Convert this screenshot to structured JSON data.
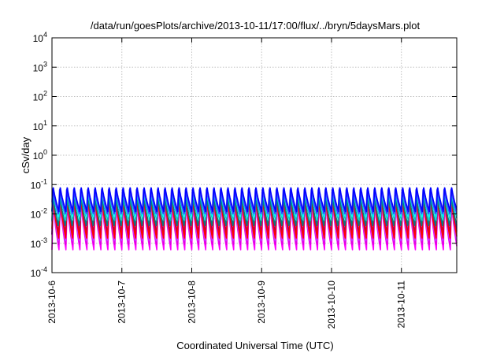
{
  "chart_data": {
    "type": "line",
    "title": "/data/run/goesPlots/archive/2013-10-11/17:00/flux/../bryn/5daysMars.plot",
    "xlabel": "Coordinated Universal Time (UTC)",
    "ylabel": "cSv/day",
    "y_scale": "log",
    "ylim": [
      0.0001,
      10000
    ],
    "xlim": [
      "2013-10-06T00:00",
      "2013-10-11T19:00"
    ],
    "grid": true,
    "y_ticks": [
      {
        "base": "10",
        "exp": "-4"
      },
      {
        "base": "10",
        "exp": "-3"
      },
      {
        "base": "10",
        "exp": "-2"
      },
      {
        "base": "10",
        "exp": "-1"
      },
      {
        "base": "10",
        "exp": "0"
      },
      {
        "base": "10",
        "exp": "1"
      },
      {
        "base": "10",
        "exp": "2"
      },
      {
        "base": "10",
        "exp": "3"
      },
      {
        "base": "10",
        "exp": "4"
      }
    ],
    "x_ticks": [
      "2013-10-6",
      "2013-10-7",
      "2013-10-8",
      "2013-10-9",
      "2013-10-10",
      "2013-10-11"
    ],
    "cycles_per_day": 10,
    "series": [
      {
        "color": "#ff00ff",
        "low": 0.0006,
        "high": 0.025
      },
      {
        "color": "#e000e0",
        "low": 0.0009,
        "high": 0.03
      },
      {
        "color": "#c040ff",
        "low": 0.0012,
        "high": 0.035
      },
      {
        "color": "#800080",
        "low": 0.002,
        "high": 0.045
      },
      {
        "color": "#ff0000",
        "low": 0.0015,
        "high": 0.04
      },
      {
        "color": "#008080",
        "low": 0.004,
        "high": 0.05
      },
      {
        "color": "#00c0c0",
        "low": 0.006,
        "high": 0.06
      },
      {
        "color": "#00ffff",
        "low": 0.008,
        "high": 0.065
      },
      {
        "color": "#4040ff",
        "low": 0.01,
        "high": 0.08
      },
      {
        "color": "#0000ff",
        "low": 0.012,
        "high": 0.09
      }
    ]
  }
}
